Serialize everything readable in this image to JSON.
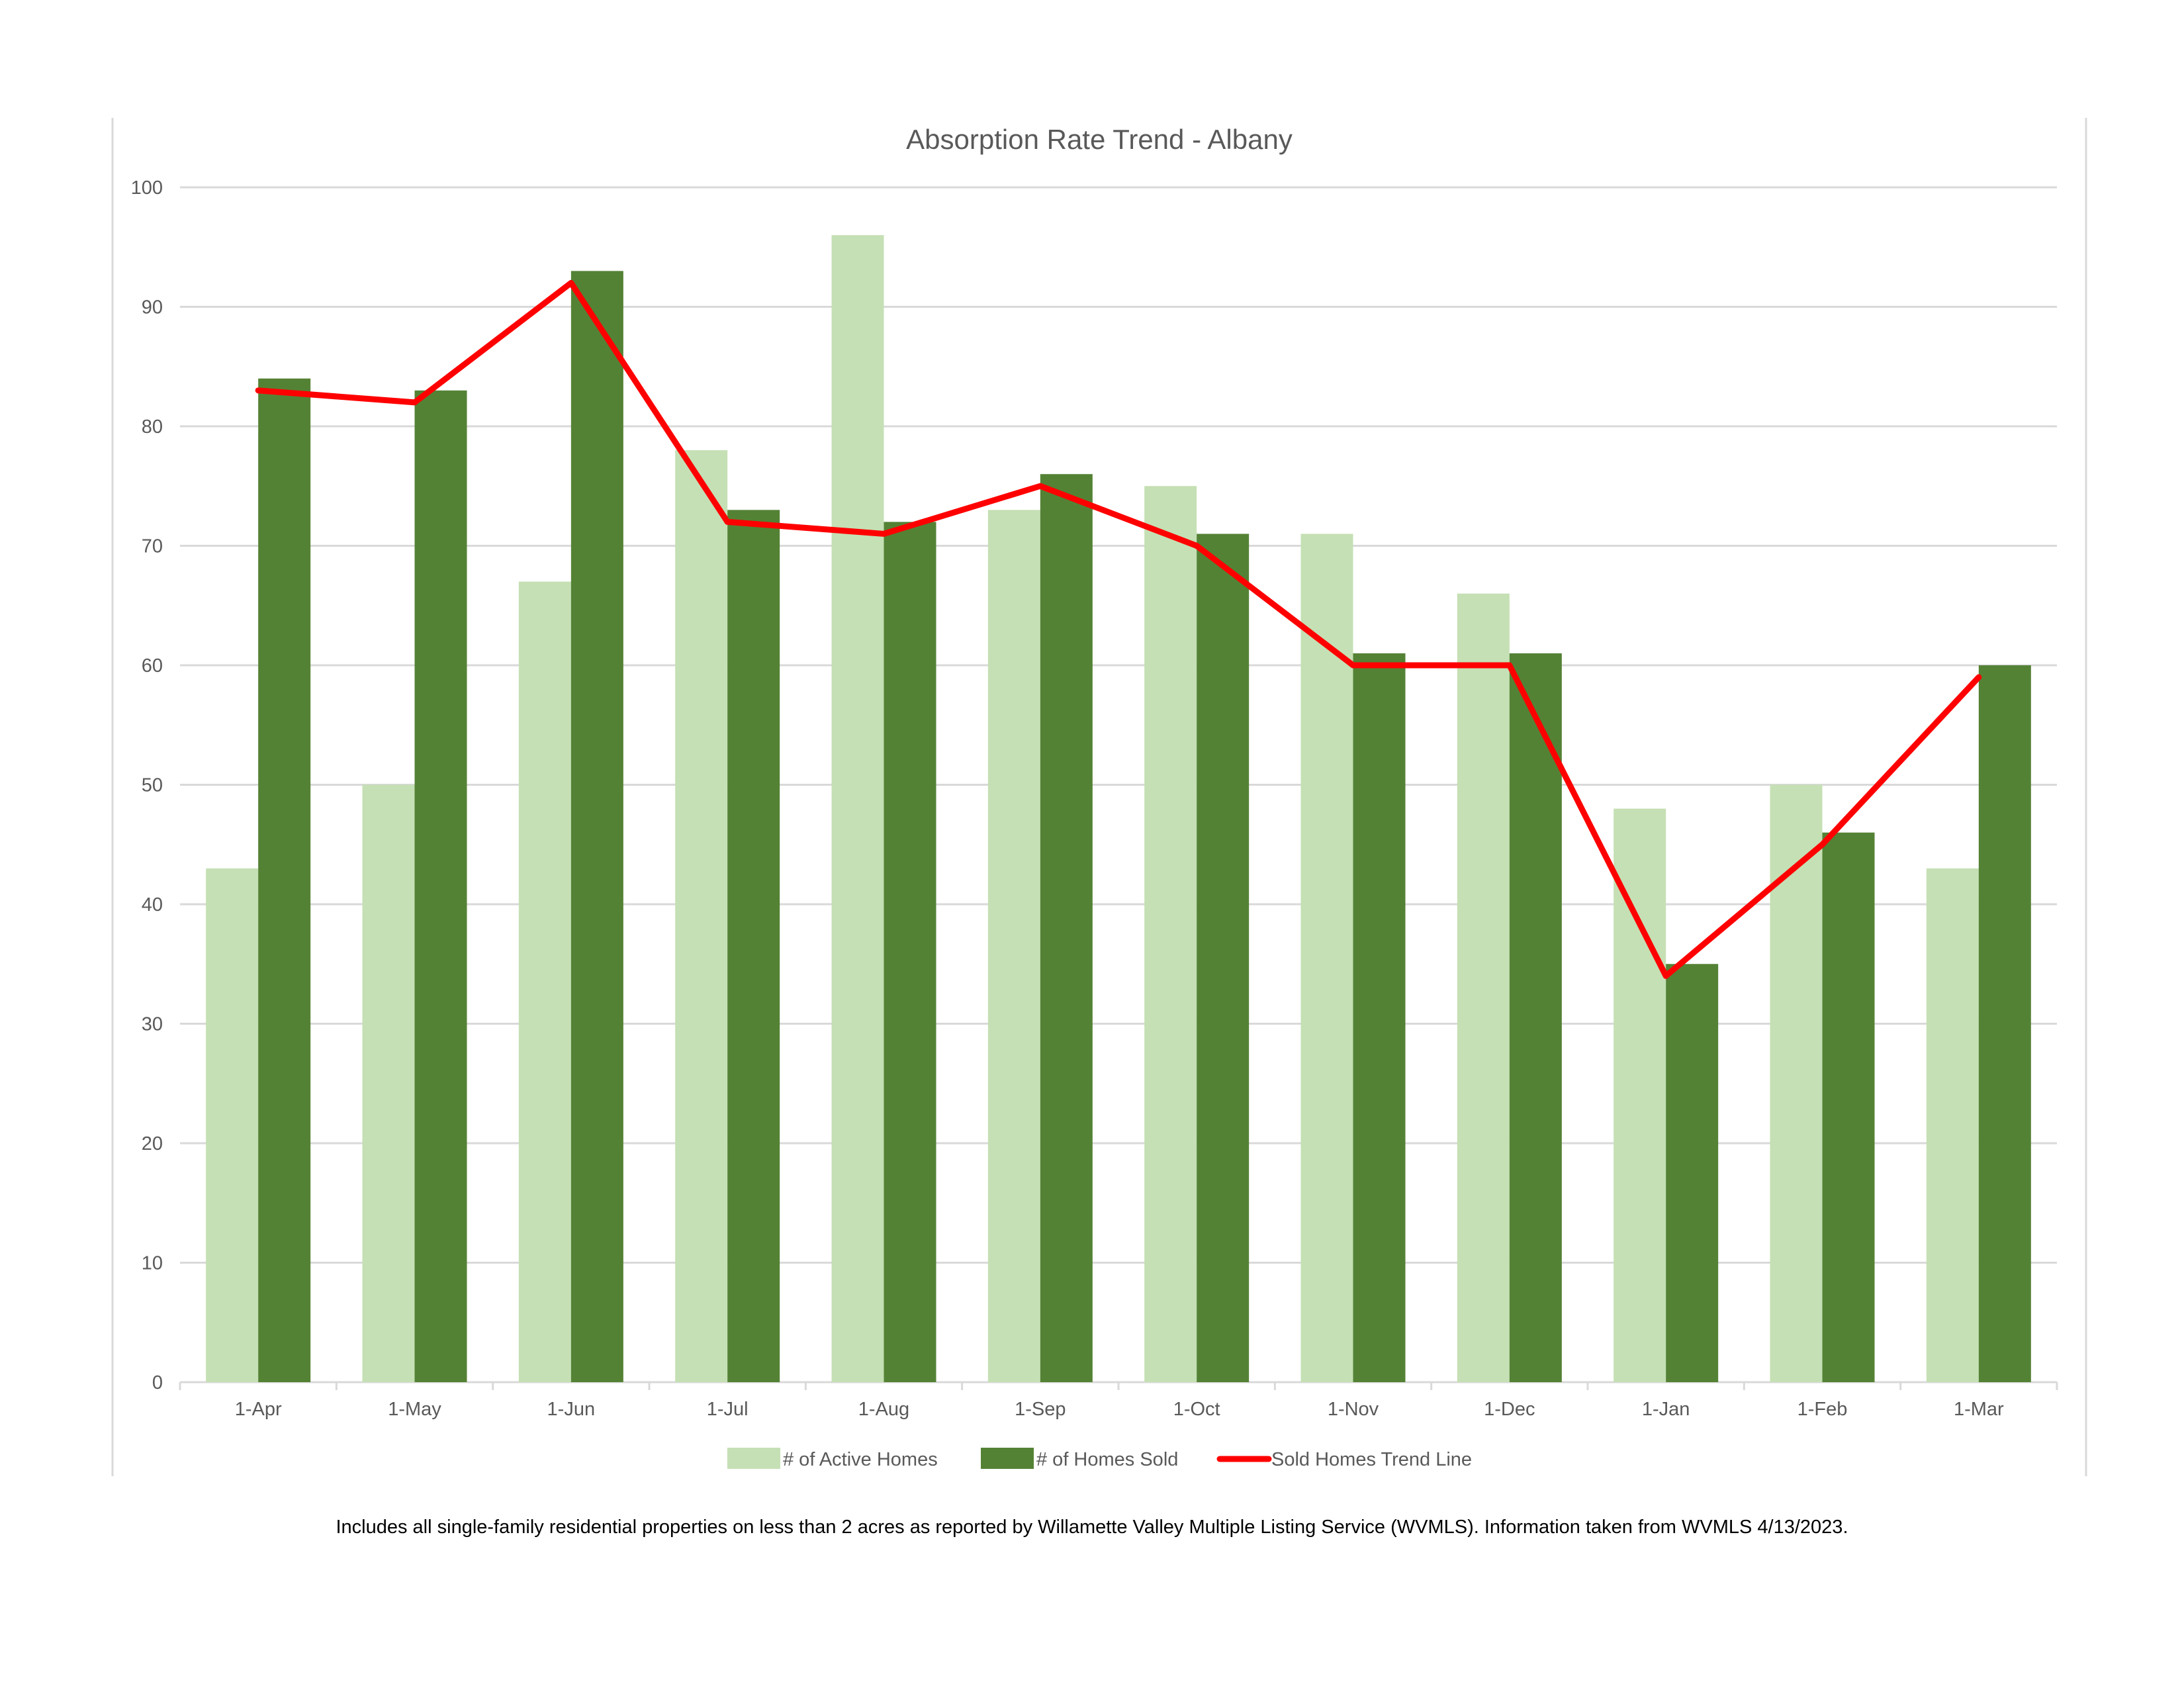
{
  "chart_data": {
    "type": "bar",
    "title": "Absorption Rate Trend - Albany",
    "categories": [
      "1-Apr",
      "1-May",
      "1-Jun",
      "1-Jul",
      "1-Aug",
      "1-Sep",
      "1-Oct",
      "1-Nov",
      "1-Dec",
      "1-Jan",
      "1-Feb",
      "1-Mar"
    ],
    "series": [
      {
        "name": "# of Active Homes",
        "kind": "bar",
        "color": "#c5e0b4",
        "values": [
          43,
          50,
          67,
          78,
          96,
          73,
          75,
          71,
          66,
          48,
          50,
          43
        ]
      },
      {
        "name": "# of Homes Sold",
        "kind": "bar",
        "color": "#548235",
        "values": [
          84,
          83,
          93,
          73,
          72,
          76,
          71,
          61,
          61,
          35,
          46,
          60
        ]
      },
      {
        "name": "Sold Homes Trend Line",
        "kind": "line",
        "color": "#ff0000",
        "values": [
          83,
          82,
          92,
          72,
          71,
          75,
          70,
          60,
          60,
          34,
          45,
          59
        ]
      }
    ],
    "xlabel": "",
    "ylabel": "",
    "ylim": [
      0,
      100
    ],
    "yticks": [
      0,
      10,
      20,
      30,
      40,
      50,
      60,
      70,
      80,
      90,
      100
    ],
    "grid": true,
    "legend_position": "bottom"
  },
  "footnote": "Includes all single-family residential properties on less than 2 acres as reported by Willamette Valley Multiple Listing Service (WVMLS). Information taken from WVMLS 4/13/2023."
}
